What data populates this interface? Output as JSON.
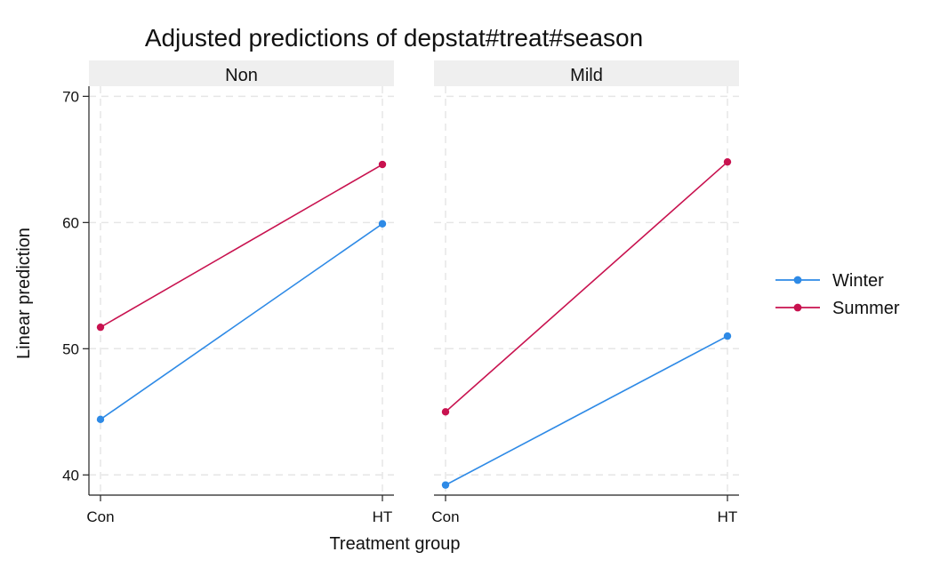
{
  "chart_data": {
    "type": "line",
    "title": "Adjusted predictions of depstat#treat#season",
    "xlabel": "Treatment group",
    "ylabel": "Linear prediction",
    "categories": [
      "Con",
      "HT"
    ],
    "ylim": [
      38.4,
      70.8
    ],
    "yticks": [
      40,
      50,
      60,
      70
    ],
    "grid": true,
    "legend_position": "right",
    "panels": [
      {
        "name": "Non",
        "series": [
          {
            "name": "Winter",
            "color": "#2e8ae6",
            "values": [
              44.4,
              59.9
            ]
          },
          {
            "name": "Summer",
            "color": "#c8124f",
            "values": [
              51.7,
              64.6
            ]
          }
        ]
      },
      {
        "name": "Mild",
        "series": [
          {
            "name": "Winter",
            "color": "#2e8ae6",
            "values": [
              39.2,
              51.0
            ]
          },
          {
            "name": "Summer",
            "color": "#c8124f",
            "values": [
              45.0,
              64.8
            ]
          }
        ]
      }
    ]
  }
}
